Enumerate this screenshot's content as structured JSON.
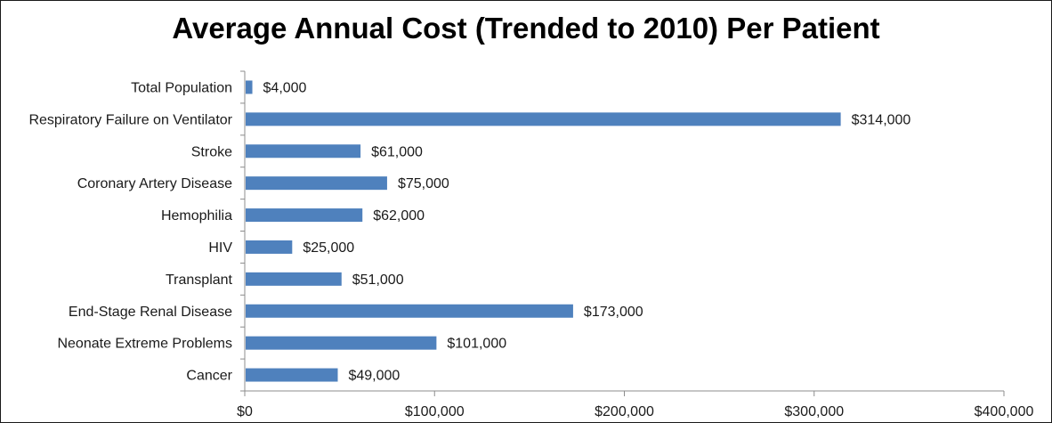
{
  "chart_data": {
    "type": "bar",
    "orientation": "horizontal",
    "title": "Average Annual Cost (Trended to 2010) Per Patient",
    "categories": [
      "Total Population",
      "Respiratory Failure on Ventilator",
      "Stroke",
      "Coronary Artery Disease",
      "Hemophilia",
      "HIV",
      "Transplant",
      "End-Stage Renal Disease",
      "Neonate Extreme Problems",
      "Cancer"
    ],
    "values": [
      4000,
      314000,
      61000,
      75000,
      62000,
      25000,
      51000,
      173000,
      101000,
      49000
    ],
    "data_labels": [
      "$4,000",
      "$314,000",
      "$61,000",
      "$75,000",
      "$62,000",
      "$25,000",
      "$51,000",
      "$173,000",
      "$101,000",
      "$49,000"
    ],
    "x_ticks": [
      0,
      100000,
      200000,
      300000,
      400000
    ],
    "x_tick_labels": [
      "$0",
      "$100,000",
      "$200,000",
      "$300,000",
      "$400,000"
    ],
    "xlim": [
      0,
      400000
    ],
    "grid": false,
    "legend": "none",
    "bar_color": "#4f81bd"
  }
}
